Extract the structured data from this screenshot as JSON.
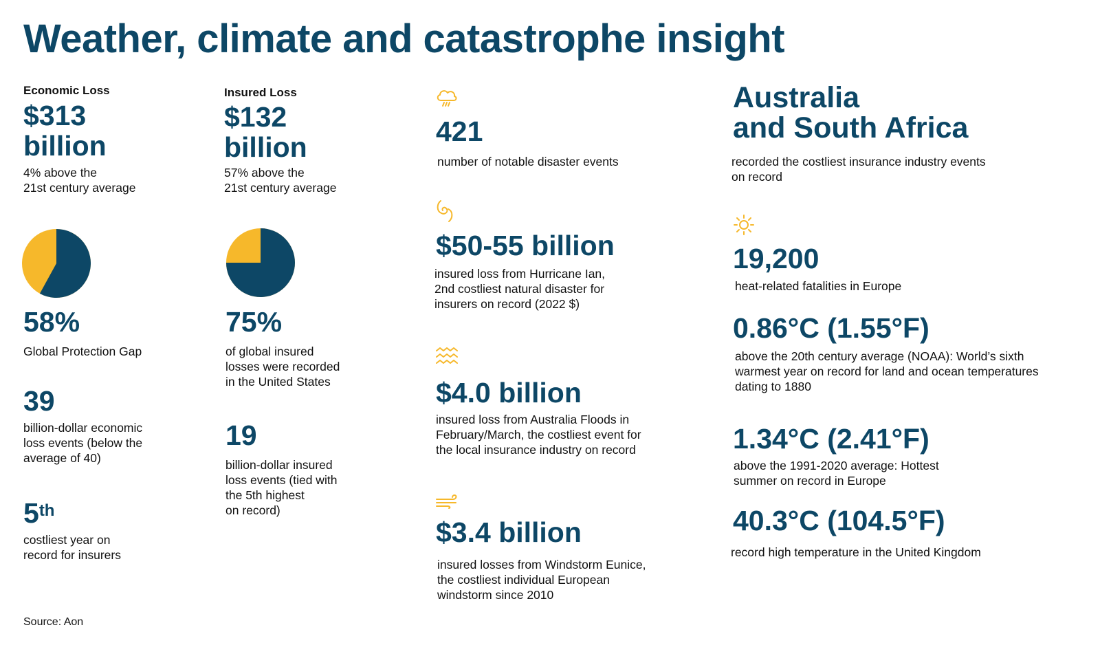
{
  "title": "Weather, climate and catastrophe insight",
  "colors": {
    "navy": "#0d4766",
    "gold": "#f6b82b"
  },
  "economic_loss": {
    "label": "Economic Loss",
    "value_line1": "$313",
    "value_line2": "billion",
    "note_line1": "4% above the",
    "note_line2": "21st century average"
  },
  "insured_loss": {
    "label": "Insured Loss",
    "value_line1": "$132",
    "value_line2": "billion",
    "note_line1": "57% above the",
    "note_line2": "21st century average"
  },
  "protection_gap": {
    "pie_fraction": 0.58,
    "value": "58%",
    "desc": "Global Protection Gap"
  },
  "us_share": {
    "pie_fraction": 0.75,
    "value": "75%",
    "desc_lines": [
      "of global insured",
      "losses were recorded",
      "in the United States"
    ]
  },
  "billion_economic": {
    "value": "39",
    "desc_lines": [
      "billion-dollar economic",
      "loss events (below the",
      "average of 40)"
    ]
  },
  "billion_insured": {
    "value": "19",
    "desc_lines": [
      "billion-dollar insured",
      "loss events (tied with",
      "the 5th highest",
      "on record)"
    ]
  },
  "costliest_year": {
    "value": "5",
    "suffix": "th",
    "desc_lines": [
      "costliest year on",
      "record for insurers"
    ]
  },
  "disaster_events": {
    "icon": "storm-cloud-icon",
    "value": "421",
    "desc": "number of notable disaster events"
  },
  "hurricane_ian": {
    "icon": "hurricane-icon",
    "value": "$50-55 billion",
    "desc_lines": [
      "insured loss from Hurricane Ian,",
      "2nd costliest natural disaster for",
      "insurers on record (2022 $)"
    ]
  },
  "australia_floods": {
    "icon": "flood-waves-icon",
    "value": "$4.0 billion",
    "desc_lines": [
      "insured loss from Australia Floods in",
      "February/March, the costliest event for",
      "the local insurance industry on record"
    ]
  },
  "windstorm_eunice": {
    "icon": "wind-icon",
    "value": "$3.4 billion",
    "desc_lines": [
      "insured losses from Windstorm Eunice,",
      "the costliest individual European",
      "windstorm since 2010"
    ]
  },
  "australia_sa": {
    "heading_lines": [
      "Australia",
      "and South Africa"
    ],
    "desc_lines": [
      "recorded the costliest insurance industry events",
      "on record"
    ]
  },
  "heat_fatalities": {
    "icon": "sun-icon",
    "value": "19,200",
    "desc": "heat-related fatalities in Europe"
  },
  "global_temp": {
    "value": "0.86°C (1.55°F)",
    "desc_lines": [
      "above the 20th century average (NOAA): World’s sixth",
      "warmest year on record for land and ocean temperatures",
      "dating to 1880"
    ]
  },
  "europe_summer": {
    "value": "1.34°C (2.41°F)",
    "desc_lines": [
      "above the 1991-2020 average: Hottest",
      "summer on record in Europe"
    ]
  },
  "uk_record": {
    "value": "40.3°C (104.5°F)",
    "desc": "record high temperature in the United Kingdom"
  },
  "source": "Source: Aon"
}
